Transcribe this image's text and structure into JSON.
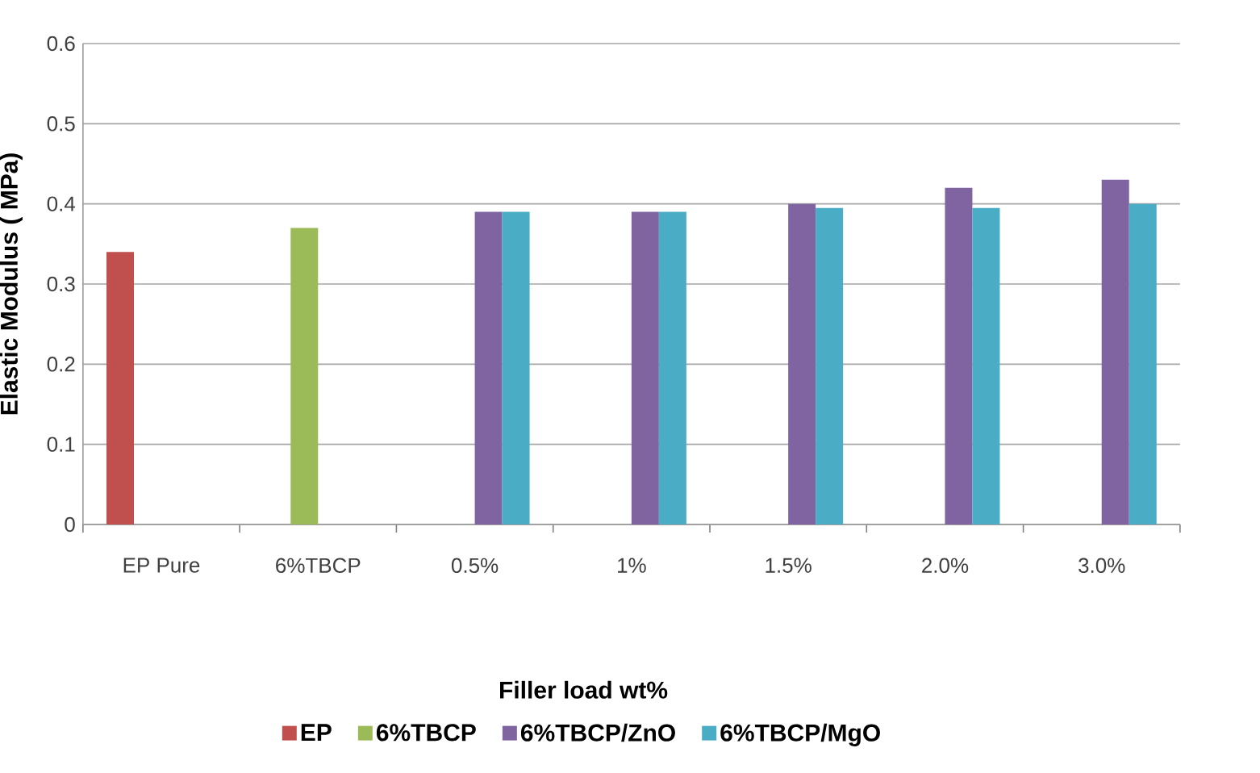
{
  "chart_data": {
    "type": "bar",
    "xlabel": "Filler load wt%",
    "ylabel": "Elastic Modulus ( MPa)",
    "categories": [
      "EP Pure",
      "6%TBCP",
      "0.5%",
      "1%",
      "1.5%",
      "2.0%",
      "3.0%"
    ],
    "series": [
      {
        "name": "EP",
        "color": "#c0504d",
        "values": [
          0.34,
          null,
          null,
          null,
          null,
          null,
          null
        ]
      },
      {
        "name": "6%TBCP",
        "color": "#9bbb59",
        "values": [
          null,
          0.37,
          null,
          null,
          null,
          null,
          null
        ]
      },
      {
        "name": "6%TBCP/ZnO",
        "color": "#8064a2",
        "values": [
          null,
          null,
          0.39,
          0.39,
          0.4,
          0.42,
          0.43
        ]
      },
      {
        "name": "6%TBCP/MgO",
        "color": "#4bacc6",
        "values": [
          null,
          null,
          0.39,
          0.39,
          0.395,
          0.395,
          0.4
        ]
      }
    ],
    "ylim": [
      0,
      0.6
    ],
    "yticks": [
      0,
      0.1,
      0.2,
      0.3,
      0.4,
      0.5,
      0.6
    ],
    "grid": "y",
    "legend": "bottom"
  }
}
